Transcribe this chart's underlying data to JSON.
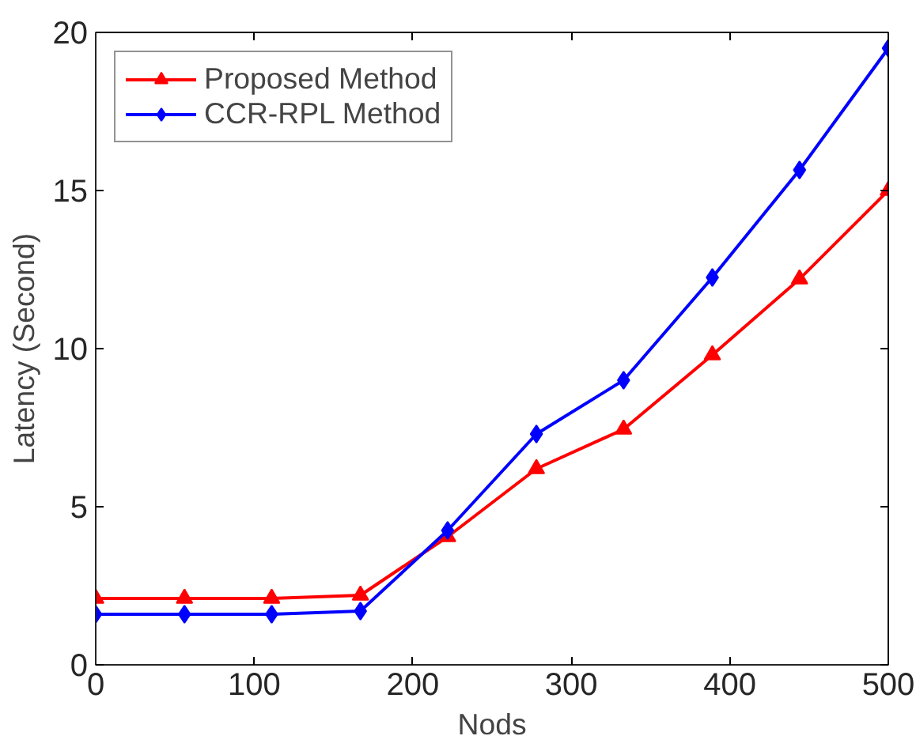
{
  "chart_data": {
    "type": "line",
    "xlabel": "Nods",
    "ylabel": "Latency (Second)",
    "x": [
      0,
      56,
      111,
      167,
      222,
      278,
      333,
      389,
      444,
      500
    ],
    "series": [
      {
        "name": "Proposed Method",
        "color": "#ff0000",
        "marker": "triangle",
        "values": [
          2.1,
          2.1,
          2.1,
          2.2,
          4.05,
          6.2,
          7.45,
          9.8,
          12.2,
          15.0
        ]
      },
      {
        "name": "CCR-RPL Method",
        "color": "#0000ff",
        "marker": "diamond",
        "values": [
          1.6,
          1.6,
          1.6,
          1.7,
          4.25,
          7.3,
          9.0,
          12.25,
          15.65,
          19.5
        ]
      }
    ],
    "xlim": [
      0,
      500
    ],
    "ylim": [
      0,
      20
    ],
    "xticks": [
      0,
      100,
      200,
      300,
      400,
      500
    ],
    "yticks": [
      0,
      5,
      10,
      15,
      20
    ],
    "grid": false,
    "legend": "top left",
    "line_style": "solid"
  }
}
